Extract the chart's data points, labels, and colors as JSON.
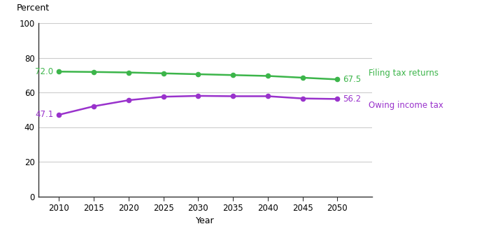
{
  "years": [
    2010,
    2015,
    2020,
    2025,
    2030,
    2035,
    2040,
    2045,
    2050
  ],
  "filing_returns": [
    72.0,
    71.8,
    71.5,
    71.0,
    70.5,
    70.0,
    69.5,
    68.5,
    67.5
  ],
  "owing_income_tax": [
    47.1,
    52.0,
    55.5,
    57.5,
    58.0,
    57.8,
    57.8,
    56.5,
    56.2
  ],
  "filing_color": "#3cb54a",
  "owing_color": "#9932CC",
  "filing_label": "Filing tax returns",
  "owing_label": "Owing income tax",
  "filing_start_label": "72.0",
  "filing_end_label": "67.5",
  "owing_start_label": "47.1",
  "owing_end_label": "56.2",
  "xlabel": "Year",
  "ylabel": "Percent",
  "ylim": [
    0,
    100
  ],
  "yticks": [
    0,
    20,
    40,
    60,
    80,
    100
  ],
  "xticks": [
    2010,
    2015,
    2020,
    2025,
    2030,
    2035,
    2040,
    2045,
    2050
  ],
  "background_color": "#ffffff",
  "grid_color": "#cccccc"
}
